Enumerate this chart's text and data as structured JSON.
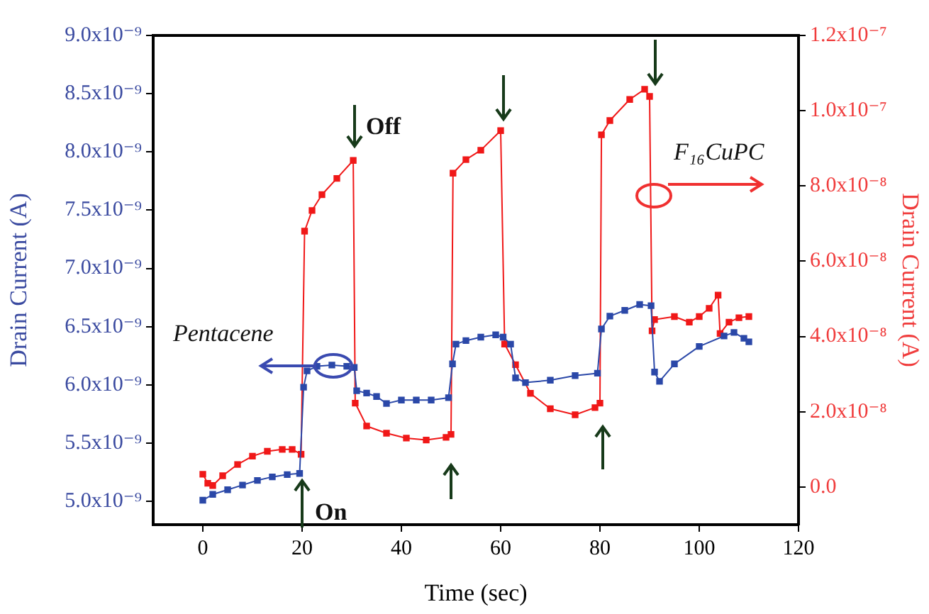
{
  "chart_data": {
    "type": "line",
    "xlabel": "Time (sec)",
    "ylabel": "Drain Current (A)",
    "y2label": "Drain Current (A)",
    "xlim": [
      -10,
      120
    ],
    "xticks": [
      0,
      20,
      40,
      60,
      80,
      100,
      120
    ],
    "ylim": [
      4.8e-09,
      9e-09
    ],
    "yticks": [
      {
        "value": 5e-09,
        "label": "5.0x10⁻⁹"
      },
      {
        "value": 5.5e-09,
        "label": "5.5x10⁻⁹"
      },
      {
        "value": 6e-09,
        "label": "6.0x10⁻⁹"
      },
      {
        "value": 6.5e-09,
        "label": "6.5x10⁻⁹"
      },
      {
        "value": 7e-09,
        "label": "7.0x10⁻⁹"
      },
      {
        "value": 7.5e-09,
        "label": "7.5x10⁻⁹"
      },
      {
        "value": 8e-09,
        "label": "8.0x10⁻⁹"
      },
      {
        "value": 8.5e-09,
        "label": "8.5x10⁻⁹"
      },
      {
        "value": 9e-09,
        "label": "9.0x10⁻⁹"
      }
    ],
    "y2lim": [
      -1e-08,
      1.2e-07
    ],
    "y2ticks": [
      {
        "value": 0,
        "label": "0.0"
      },
      {
        "value": 2e-08,
        "label": "2.0x10⁻⁸"
      },
      {
        "value": 4e-08,
        "label": "4.0x10⁻⁸"
      },
      {
        "value": 6e-08,
        "label": "6.0x10⁻⁸"
      },
      {
        "value": 8e-08,
        "label": "8.0x10⁻⁸"
      },
      {
        "value": 1e-07,
        "label": "1.0x10⁻⁷"
      },
      {
        "value": 1.2e-07,
        "label": "1.2x10⁻⁷"
      }
    ],
    "grid": false,
    "legend": false,
    "marker": "square",
    "line_style": "solid",
    "annotations": [
      "On",
      "Off"
    ],
    "series": [
      {
        "name": "Pentacene",
        "color": "#2b48a8",
        "x": [
          0,
          2,
          5,
          8,
          11,
          14,
          17,
          19.5,
          20.3,
          21,
          23,
          26,
          29,
          30.5,
          31,
          33,
          35,
          37,
          40,
          43,
          46,
          49.5,
          50.3,
          51,
          53,
          56,
          59,
          60.5,
          62,
          63,
          65,
          70,
          75,
          79.5,
          80.3,
          82,
          85,
          88,
          90.3,
          91,
          92,
          95,
          100,
          105,
          107,
          109,
          110
        ],
        "values": [
          5.01e-09,
          5.06e-09,
          5.1e-09,
          5.14e-09,
          5.18e-09,
          5.21e-09,
          5.23e-09,
          5.24e-09,
          5.98e-09,
          6.12e-09,
          6.16e-09,
          6.17e-09,
          6.16e-09,
          6.15e-09,
          5.95e-09,
          5.93e-09,
          5.9e-09,
          5.84e-09,
          5.87e-09,
          5.87e-09,
          5.87e-09,
          5.89e-09,
          6.18e-09,
          6.35e-09,
          6.38e-09,
          6.41e-09,
          6.43e-09,
          6.41e-09,
          6.35e-09,
          6.06e-09,
          6.02e-09,
          6.04e-09,
          6.08e-09,
          6.1e-09,
          6.48e-09,
          6.59e-09,
          6.64e-09,
          6.69e-09,
          6.68e-09,
          6.11e-09,
          6.03e-09,
          6.18e-09,
          6.33e-09,
          6.42e-09,
          6.45e-09,
          6.4e-09,
          6.37e-09
        ]
      },
      {
        "name": "F₁₆CuPC",
        "color": "#f01818",
        "axis": "y2",
        "x": [
          0,
          1,
          2,
          4,
          7,
          10,
          13,
          16,
          18,
          19.8,
          20.5,
          22,
          24,
          27,
          30.3,
          30.7,
          33,
          37,
          41,
          45,
          49,
          50,
          50.4,
          53,
          56,
          60,
          60.8,
          63,
          66,
          70,
          75,
          79,
          80,
          80.3,
          82,
          86,
          89,
          90,
          90.5,
          91,
          95,
          98,
          100,
          102,
          103.8,
          104.2,
          106,
          108,
          110
        ],
        "values": [
          3.4e-09,
          1e-09,
          4e-10,
          3e-09,
          6e-09,
          8.2e-09,
          9.5e-09,
          1e-08,
          1e-08,
          8.7e-09,
          6.8e-08,
          7.35e-08,
          7.77e-08,
          8.2e-08,
          8.68e-08,
          2.23e-08,
          1.62e-08,
          1.43e-08,
          1.3e-08,
          1.25e-08,
          1.32e-08,
          1.4e-08,
          8.34e-08,
          8.7e-08,
          8.95e-08,
          9.47e-08,
          3.8e-08,
          3.25e-08,
          2.49e-08,
          2.08e-08,
          1.92e-08,
          2.11e-08,
          2.23e-08,
          9.36e-08,
          9.74e-08,
          1.03e-07,
          1.057e-07,
          1.038e-07,
          4.15e-08,
          4.45e-08,
          4.53e-08,
          4.38e-08,
          4.53e-08,
          4.75e-08,
          5.1e-08,
          4.08e-08,
          4.38e-08,
          4.5e-08,
          4.53e-08
        ]
      }
    ]
  }
}
